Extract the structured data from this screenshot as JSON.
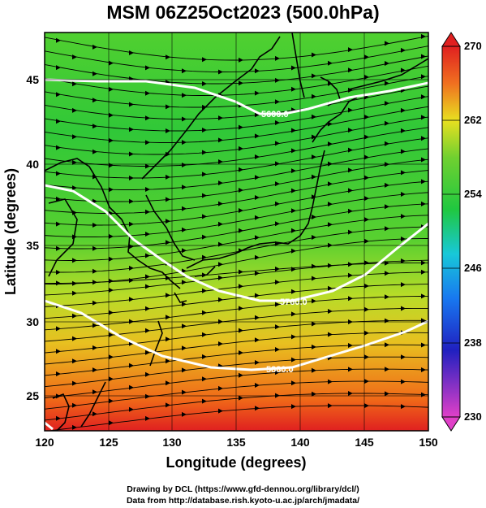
{
  "title": "MSM 06Z25Oct2023 (500.0hPa)",
  "credits": {
    "line1": "Drawing by DCL (https://www.gfd-dennou.org/library/dcl/)",
    "line2": "Data from http://database.rish.kyoto-u.ac.jp/arch/jmadata/"
  },
  "map": {
    "xlabel": "Longitude (degrees)",
    "ylabel": "Latitude  (degrees)",
    "x_ticks": [
      "120",
      "125",
      "130",
      "135",
      "140",
      "145",
      "150"
    ],
    "y_ticks": [
      "25",
      "30",
      "35",
      "40",
      "45"
    ],
    "xlim": [
      120,
      150
    ],
    "ylim": [
      22.5,
      47.5
    ],
    "contour_labels": [
      "5600.0",
      "5760.0",
      "5880.0"
    ]
  },
  "colorbar": {
    "ticks": [
      "270",
      "262",
      "254",
      "246",
      "238",
      "230"
    ],
    "range": [
      230,
      270
    ],
    "colors": {
      "low": "#e040c8",
      "blue": "#1830d0",
      "cyan": "#18c8e0",
      "green": "#20c840",
      "yellow": "#f0e020",
      "orange": "#f07020",
      "red": "#e02020"
    }
  }
}
